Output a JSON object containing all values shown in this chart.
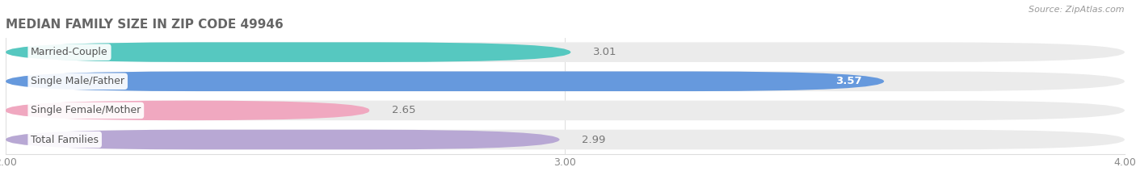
{
  "title": "MEDIAN FAMILY SIZE IN ZIP CODE 49946",
  "source": "Source: ZipAtlas.com",
  "categories": [
    "Married-Couple",
    "Single Male/Father",
    "Single Female/Mother",
    "Total Families"
  ],
  "values": [
    3.01,
    3.57,
    2.65,
    2.99
  ],
  "bar_colors": [
    "#56c8c0",
    "#6699dd",
    "#f0a8c0",
    "#b8a8d4"
  ],
  "bar_bg_color": "#ebebeb",
  "xlim": [
    2.0,
    4.0
  ],
  "xticks": [
    2.0,
    3.0,
    4.0
  ],
  "label_color": "#555555",
  "value_color_inside": "#ffffff",
  "value_color_outside": "#777777",
  "title_color": "#666666",
  "source_color": "#999999",
  "background_color": "#ffffff",
  "bar_height": 0.68,
  "bar_gap": 0.32
}
